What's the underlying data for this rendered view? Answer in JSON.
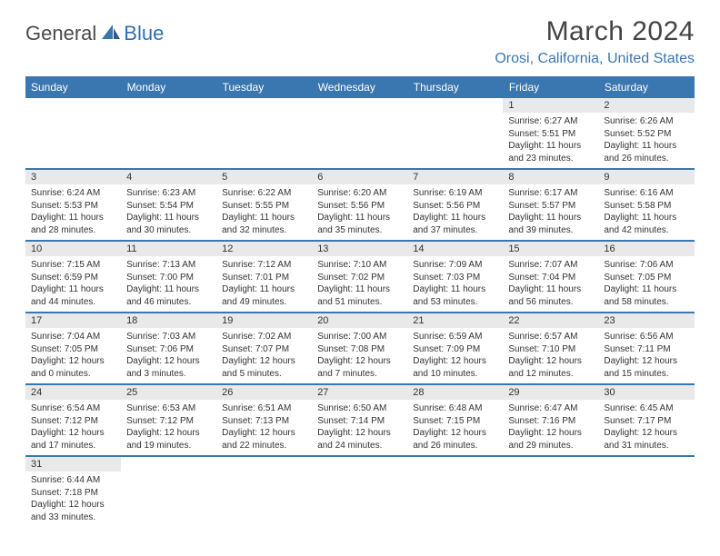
{
  "logo": {
    "text1": "General",
    "text2": "Blue"
  },
  "title": "March 2024",
  "location": "Orosi, California, United States",
  "colors": {
    "accent": "#3a76af",
    "header_bg": "#3a76af",
    "daynum_bg": "#e9e9e9",
    "text": "#333333",
    "background": "#ffffff"
  },
  "day_headers": [
    "Sunday",
    "Monday",
    "Tuesday",
    "Wednesday",
    "Thursday",
    "Friday",
    "Saturday"
  ],
  "weeks": [
    [
      null,
      null,
      null,
      null,
      null,
      {
        "n": "1",
        "sr": "Sunrise: 6:27 AM",
        "ss": "Sunset: 5:51 PM",
        "dl": "Daylight: 11 hours and 23 minutes."
      },
      {
        "n": "2",
        "sr": "Sunrise: 6:26 AM",
        "ss": "Sunset: 5:52 PM",
        "dl": "Daylight: 11 hours and 26 minutes."
      }
    ],
    [
      {
        "n": "3",
        "sr": "Sunrise: 6:24 AM",
        "ss": "Sunset: 5:53 PM",
        "dl": "Daylight: 11 hours and 28 minutes."
      },
      {
        "n": "4",
        "sr": "Sunrise: 6:23 AM",
        "ss": "Sunset: 5:54 PM",
        "dl": "Daylight: 11 hours and 30 minutes."
      },
      {
        "n": "5",
        "sr": "Sunrise: 6:22 AM",
        "ss": "Sunset: 5:55 PM",
        "dl": "Daylight: 11 hours and 32 minutes."
      },
      {
        "n": "6",
        "sr": "Sunrise: 6:20 AM",
        "ss": "Sunset: 5:56 PM",
        "dl": "Daylight: 11 hours and 35 minutes."
      },
      {
        "n": "7",
        "sr": "Sunrise: 6:19 AM",
        "ss": "Sunset: 5:56 PM",
        "dl": "Daylight: 11 hours and 37 minutes."
      },
      {
        "n": "8",
        "sr": "Sunrise: 6:17 AM",
        "ss": "Sunset: 5:57 PM",
        "dl": "Daylight: 11 hours and 39 minutes."
      },
      {
        "n": "9",
        "sr": "Sunrise: 6:16 AM",
        "ss": "Sunset: 5:58 PM",
        "dl": "Daylight: 11 hours and 42 minutes."
      }
    ],
    [
      {
        "n": "10",
        "sr": "Sunrise: 7:15 AM",
        "ss": "Sunset: 6:59 PM",
        "dl": "Daylight: 11 hours and 44 minutes."
      },
      {
        "n": "11",
        "sr": "Sunrise: 7:13 AM",
        "ss": "Sunset: 7:00 PM",
        "dl": "Daylight: 11 hours and 46 minutes."
      },
      {
        "n": "12",
        "sr": "Sunrise: 7:12 AM",
        "ss": "Sunset: 7:01 PM",
        "dl": "Daylight: 11 hours and 49 minutes."
      },
      {
        "n": "13",
        "sr": "Sunrise: 7:10 AM",
        "ss": "Sunset: 7:02 PM",
        "dl": "Daylight: 11 hours and 51 minutes."
      },
      {
        "n": "14",
        "sr": "Sunrise: 7:09 AM",
        "ss": "Sunset: 7:03 PM",
        "dl": "Daylight: 11 hours and 53 minutes."
      },
      {
        "n": "15",
        "sr": "Sunrise: 7:07 AM",
        "ss": "Sunset: 7:04 PM",
        "dl": "Daylight: 11 hours and 56 minutes."
      },
      {
        "n": "16",
        "sr": "Sunrise: 7:06 AM",
        "ss": "Sunset: 7:05 PM",
        "dl": "Daylight: 11 hours and 58 minutes."
      }
    ],
    [
      {
        "n": "17",
        "sr": "Sunrise: 7:04 AM",
        "ss": "Sunset: 7:05 PM",
        "dl": "Daylight: 12 hours and 0 minutes."
      },
      {
        "n": "18",
        "sr": "Sunrise: 7:03 AM",
        "ss": "Sunset: 7:06 PM",
        "dl": "Daylight: 12 hours and 3 minutes."
      },
      {
        "n": "19",
        "sr": "Sunrise: 7:02 AM",
        "ss": "Sunset: 7:07 PM",
        "dl": "Daylight: 12 hours and 5 minutes."
      },
      {
        "n": "20",
        "sr": "Sunrise: 7:00 AM",
        "ss": "Sunset: 7:08 PM",
        "dl": "Daylight: 12 hours and 7 minutes."
      },
      {
        "n": "21",
        "sr": "Sunrise: 6:59 AM",
        "ss": "Sunset: 7:09 PM",
        "dl": "Daylight: 12 hours and 10 minutes."
      },
      {
        "n": "22",
        "sr": "Sunrise: 6:57 AM",
        "ss": "Sunset: 7:10 PM",
        "dl": "Daylight: 12 hours and 12 minutes."
      },
      {
        "n": "23",
        "sr": "Sunrise: 6:56 AM",
        "ss": "Sunset: 7:11 PM",
        "dl": "Daylight: 12 hours and 15 minutes."
      }
    ],
    [
      {
        "n": "24",
        "sr": "Sunrise: 6:54 AM",
        "ss": "Sunset: 7:12 PM",
        "dl": "Daylight: 12 hours and 17 minutes."
      },
      {
        "n": "25",
        "sr": "Sunrise: 6:53 AM",
        "ss": "Sunset: 7:12 PM",
        "dl": "Daylight: 12 hours and 19 minutes."
      },
      {
        "n": "26",
        "sr": "Sunrise: 6:51 AM",
        "ss": "Sunset: 7:13 PM",
        "dl": "Daylight: 12 hours and 22 minutes."
      },
      {
        "n": "27",
        "sr": "Sunrise: 6:50 AM",
        "ss": "Sunset: 7:14 PM",
        "dl": "Daylight: 12 hours and 24 minutes."
      },
      {
        "n": "28",
        "sr": "Sunrise: 6:48 AM",
        "ss": "Sunset: 7:15 PM",
        "dl": "Daylight: 12 hours and 26 minutes."
      },
      {
        "n": "29",
        "sr": "Sunrise: 6:47 AM",
        "ss": "Sunset: 7:16 PM",
        "dl": "Daylight: 12 hours and 29 minutes."
      },
      {
        "n": "30",
        "sr": "Sunrise: 6:45 AM",
        "ss": "Sunset: 7:17 PM",
        "dl": "Daylight: 12 hours and 31 minutes."
      }
    ],
    [
      {
        "n": "31",
        "sr": "Sunrise: 6:44 AM",
        "ss": "Sunset: 7:18 PM",
        "dl": "Daylight: 12 hours and 33 minutes."
      },
      null,
      null,
      null,
      null,
      null,
      null
    ]
  ]
}
